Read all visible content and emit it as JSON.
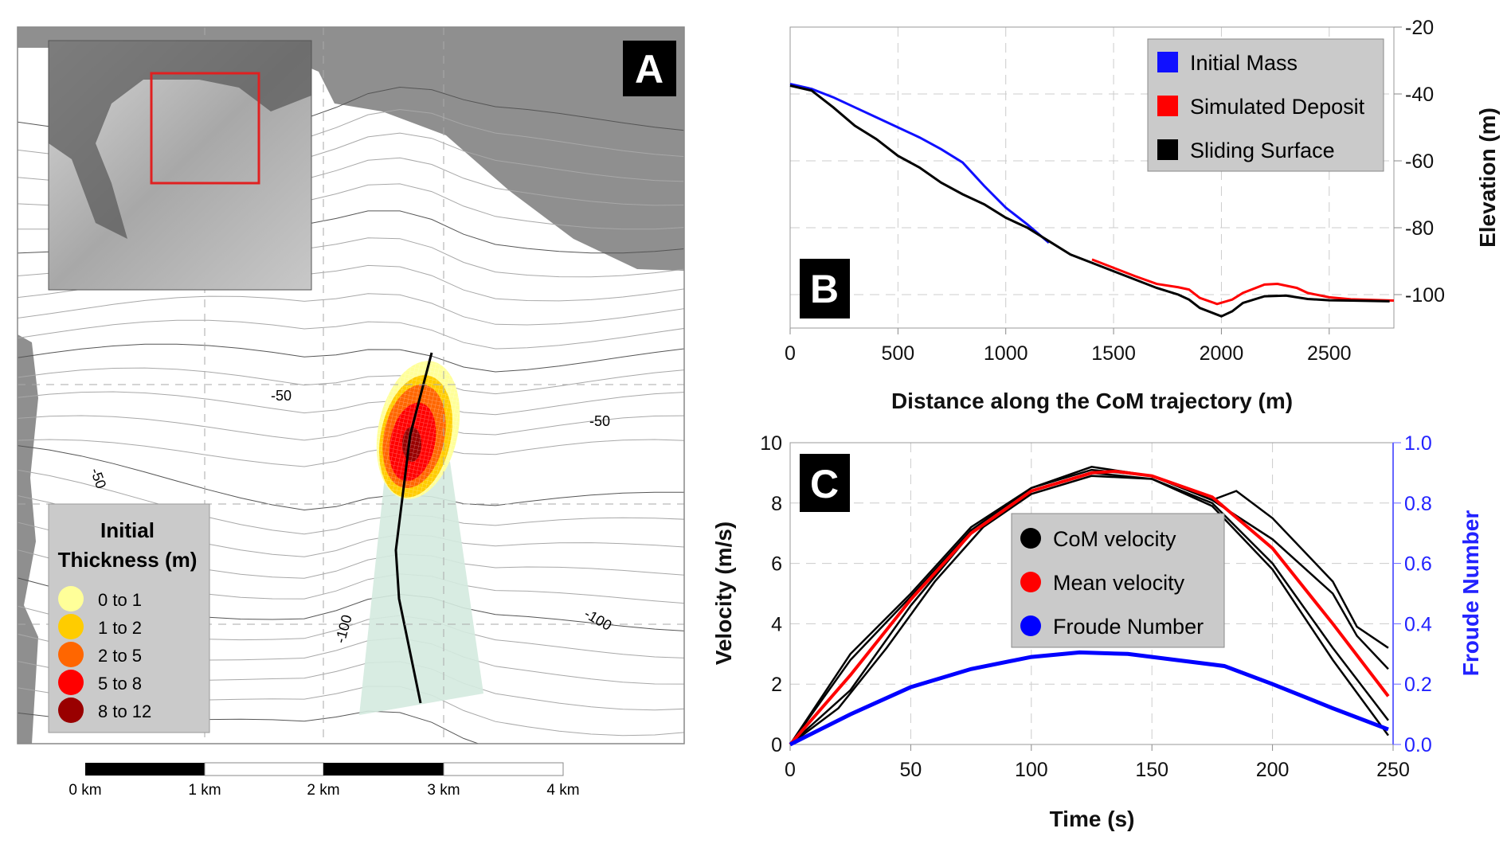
{
  "panel_a": {
    "label": "A",
    "legend": {
      "title_line1": "Initial",
      "title_line2": "Thickness (m)",
      "items": [
        {
          "label": "0  to  1",
          "color": "#ffff99"
        },
        {
          "label": "1  to  2",
          "color": "#ffcc00"
        },
        {
          "label": "2  to  5",
          "color": "#ff6600"
        },
        {
          "label": "5  to  8",
          "color": "#ff0000"
        },
        {
          "label": "8  to  12",
          "color": "#990000"
        }
      ]
    },
    "contour_labels": [
      "-50",
      "-50",
      "-50",
      "-100",
      "-100"
    ],
    "scale_bar": [
      "0 km",
      "1 km",
      "2 km",
      "3 km",
      "4 km"
    ],
    "inset_highlight_color": "#e02020",
    "runout_color": "#d4eadf"
  },
  "chart_data": [
    {
      "type": "line",
      "panel": "B",
      "xlabel": "Distance along the CoM trajectory (m)",
      "ylabel": "Elevation (m)",
      "xlim": [
        0,
        2800
      ],
      "ylim": [
        -110,
        -20
      ],
      "xticks": [
        0,
        500,
        1000,
        1500,
        2000,
        2500
      ],
      "yticks": [
        -20,
        -40,
        -60,
        -80,
        -100
      ],
      "grid": true,
      "legend_position": "top-right",
      "series": [
        {
          "name": "Initial Mass",
          "color": "#1010ff",
          "x": [
            0,
            100,
            200,
            300,
            400,
            500,
            600,
            700,
            800,
            900,
            1000,
            1100,
            1200
          ],
          "y": [
            -37,
            -38.5,
            -41,
            -44,
            -47,
            -50,
            -53,
            -56.5,
            -60.5,
            -67.5,
            -74,
            -79,
            -84.5
          ]
        },
        {
          "name": "Simulated Deposit",
          "color": "#ff0000",
          "x": [
            1400,
            1500,
            1600,
            1700,
            1800,
            1850,
            1900,
            1980,
            2050,
            2100,
            2200,
            2260,
            2350,
            2400,
            2500,
            2600,
            2800
          ],
          "y": [
            -89.5,
            -92,
            -94.5,
            -96.8,
            -97.8,
            -98.5,
            -101,
            -102.8,
            -101.5,
            -99.5,
            -97,
            -96.8,
            -98,
            -99.5,
            -100.8,
            -101.4,
            -101.8
          ]
        },
        {
          "name": "Sliding Surface",
          "color": "#000000",
          "x": [
            0,
            100,
            200,
            300,
            400,
            500,
            600,
            700,
            800,
            900,
            1000,
            1100,
            1200,
            1300,
            1400,
            1500,
            1600,
            1700,
            1800,
            1850,
            1900,
            2000,
            2050,
            2100,
            2200,
            2300,
            2400,
            2500,
            2600,
            2780
          ],
          "y": [
            -37.5,
            -39,
            -44,
            -49.5,
            -53.5,
            -58.5,
            -62,
            -66.5,
            -70,
            -73,
            -77,
            -80,
            -84,
            -88,
            -90.5,
            -93,
            -95.5,
            -98,
            -100,
            -101.5,
            -104,
            -106.5,
            -105,
            -102.5,
            -100.5,
            -100.3,
            -101.3,
            -101.7,
            -101.8,
            -102
          ]
        }
      ],
      "panel_label": "B"
    },
    {
      "type": "line",
      "panel": "C",
      "xlabel": "Time (s)",
      "ylabel": "Velocity (m/s)",
      "y2label": "Froude Number",
      "xlim": [
        0,
        250
      ],
      "ylim": [
        0,
        10
      ],
      "y2lim": [
        0,
        1.0
      ],
      "xticks": [
        0,
        50,
        100,
        150,
        200,
        250
      ],
      "yticks": [
        0,
        2,
        4,
        6,
        8,
        10
      ],
      "y2ticks": [
        "0.0",
        "0.2",
        "0.4",
        "0.6",
        "0.8",
        "1.0"
      ],
      "grid": true,
      "legend_position": "center",
      "series": [
        {
          "name": "CoM velocity",
          "color": "#000000",
          "runs": [
            {
              "x": [
                0,
                25,
                50,
                75,
                100,
                125,
                150,
                175,
                185,
                200,
                225,
                235,
                248
              ],
              "y": [
                0,
                3,
                5,
                7.2,
                8.5,
                9.2,
                8.9,
                8.1,
                8.4,
                7.5,
                5.4,
                3.9,
                3.2
              ]
            },
            {
              "x": [
                0,
                25,
                50,
                75,
                100,
                125,
                150,
                175,
                200,
                225,
                235,
                248
              ],
              "y": [
                0,
                2.8,
                4.9,
                7.1,
                8.5,
                9.1,
                8.9,
                8.1,
                6.8,
                5,
                3.6,
                2.5
              ]
            },
            {
              "x": [
                0,
                25,
                50,
                75,
                100,
                125,
                150,
                175,
                200,
                225,
                248
              ],
              "y": [
                0,
                1.8,
                4.6,
                7,
                8.4,
                9,
                8.8,
                8,
                6,
                3.2,
                0.8
              ]
            },
            {
              "x": [
                0,
                20,
                40,
                60,
                80,
                100,
                125,
                150,
                175,
                200,
                225,
                248
              ],
              "y": [
                0,
                1.2,
                3.2,
                5.4,
                7.2,
                8.3,
                8.9,
                8.8,
                7.9,
                5.8,
                2.8,
                0.3
              ]
            }
          ]
        },
        {
          "name": "Mean velocity",
          "color": "#ff0000",
          "x": [
            0,
            25,
            50,
            75,
            100,
            125,
            135,
            150,
            175,
            200,
            225,
            248
          ],
          "y": [
            0,
            2.3,
            4.8,
            7,
            8.4,
            9,
            9.05,
            8.9,
            8.2,
            6.5,
            4,
            1.6
          ]
        },
        {
          "name": "Froude Number",
          "color": "#0000ff",
          "axis": "y2",
          "x": [
            0,
            25,
            50,
            75,
            100,
            120,
            140,
            160,
            180,
            200,
            225,
            248
          ],
          "y": [
            0,
            0.1,
            0.19,
            0.25,
            0.29,
            0.305,
            0.3,
            0.28,
            0.26,
            0.2,
            0.12,
            0.05
          ]
        }
      ],
      "panel_label": "C"
    }
  ]
}
